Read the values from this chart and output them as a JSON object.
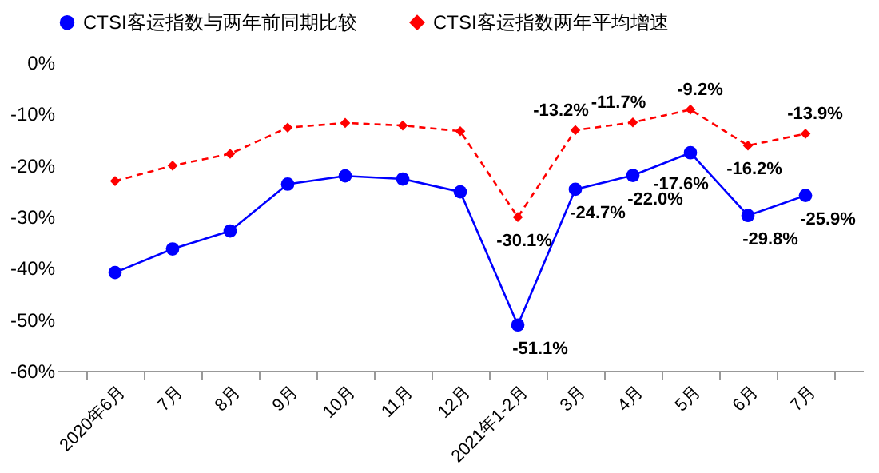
{
  "chart_data": {
    "type": "line",
    "categories": [
      "2020年6月",
      "7月",
      "8月",
      "9月",
      "10月",
      "11月",
      "12月",
      "2021年1-2月",
      "3月",
      "4月",
      "5月",
      "6月",
      "7月"
    ],
    "series": [
      {
        "name": "CTSI客运指数与两年前同期比较",
        "color": "#0000ff",
        "marker": "circle",
        "line_style": "solid",
        "values": [
          -40.9,
          -36.3,
          -32.8,
          -23.7,
          -22.1,
          -22.7,
          -25.2,
          -51.1,
          -24.7,
          -22.0,
          -17.6,
          -29.8,
          -25.9
        ],
        "value_labels": [
          null,
          null,
          null,
          null,
          null,
          null,
          null,
          "-51.1%",
          "-24.7%",
          "-22.0%",
          "-17.6%",
          "-29.8%",
          "-25.9%"
        ]
      },
      {
        "name": "CTSI客运指数两年平均增速",
        "color": "#ff0000",
        "marker": "diamond",
        "line_style": "dashed",
        "values": [
          -23.1,
          -20.1,
          -17.8,
          -12.7,
          -11.8,
          -12.3,
          -13.4,
          -30.1,
          -13.2,
          -11.7,
          -9.2,
          -16.2,
          -13.9
        ],
        "value_labels": [
          null,
          null,
          null,
          null,
          null,
          null,
          null,
          "-30.1%",
          "-13.2%",
          "-11.7%",
          "-9.2%",
          "-16.2%",
          "-13.9%"
        ]
      }
    ],
    "ylim": [
      -60,
      0
    ],
    "yticks": [
      {
        "value": -60,
        "label": "-60%"
      },
      {
        "value": -50,
        "label": "-50%"
      },
      {
        "value": -40,
        "label": "-40%"
      },
      {
        "value": -30,
        "label": "-30%"
      },
      {
        "value": -20,
        "label": "-20%"
      },
      {
        "value": -10,
        "label": "-10%"
      },
      {
        "value": 0,
        "label": "0%"
      }
    ],
    "grid": false,
    "legend": "top"
  }
}
